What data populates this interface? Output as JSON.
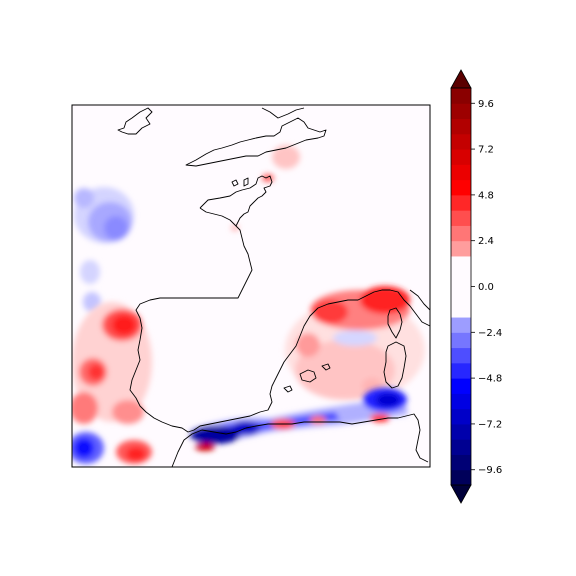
{
  "colorbar": {
    "ticks": [
      "9.6",
      "7.2",
      "4.8",
      "2.4",
      "0.0",
      "−2.4",
      "−4.8",
      "−7.2",
      "−9.6"
    ],
    "tick_values": [
      9.6,
      7.2,
      4.8,
      2.4,
      0.0,
      -2.4,
      -4.8,
      -7.2,
      -9.6
    ],
    "range": [
      -10.4,
      10.4
    ],
    "extend": "both",
    "cmap": "seismic",
    "max_color": "#5a0000",
    "min_color": "#00003a"
  },
  "map": {
    "projection": "PlateCarree",
    "coastlines": true
  }
}
